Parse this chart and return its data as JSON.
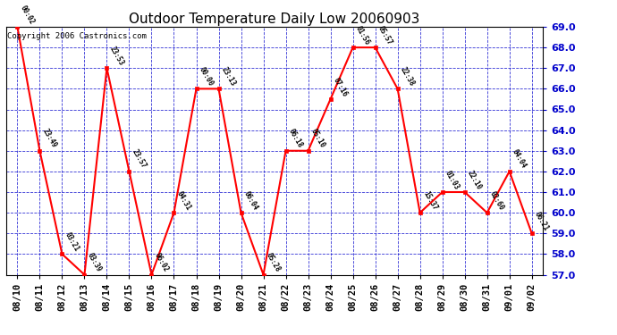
{
  "title": "Outdoor Temperature Daily Low 20060903",
  "copyright": "Copyright 2006 Castronics.com",
  "dates": [
    "08/10",
    "08/11",
    "08/12",
    "08/13",
    "08/14",
    "08/15",
    "08/16",
    "08/17",
    "08/18",
    "08/19",
    "08/20",
    "08/21",
    "08/22",
    "08/23",
    "08/24",
    "08/25",
    "08/26",
    "08/27",
    "08/28",
    "08/29",
    "08/30",
    "08/31",
    "09/01",
    "09/02"
  ],
  "values": [
    69.0,
    63.0,
    58.0,
    57.0,
    67.0,
    62.0,
    57.0,
    60.0,
    66.0,
    66.0,
    60.0,
    57.0,
    63.0,
    63.0,
    65.5,
    68.0,
    68.0,
    66.0,
    60.0,
    61.0,
    61.0,
    60.0,
    62.0,
    59.0
  ],
  "labels": [
    "00:02",
    "23:49",
    "03:21",
    "03:39",
    "23:53",
    "23:57",
    "06:02",
    "04:31",
    "00:00",
    "23:13",
    "06:04",
    "05:28",
    "06:18",
    "05:10",
    "07:16",
    "01:56",
    "05:57",
    "22:38",
    "15:37",
    "01:03",
    "22:10",
    "02:60",
    "04:04",
    "06:21"
  ],
  "ylim": [
    57.0,
    69.0
  ],
  "yticks": [
    57.0,
    58.0,
    59.0,
    60.0,
    61.0,
    62.0,
    63.0,
    64.0,
    65.0,
    66.0,
    67.0,
    68.0,
    69.0
  ],
  "line_color": "#ff0000",
  "marker_color": "#ff0000",
  "bg_color": "#ffffff",
  "plot_bg_color": "#ffffff",
  "grid_color": "#0000cc",
  "label_color": "#000000",
  "title_color": "#000000",
  "copyright_color": "#000000",
  "ytick_color": "#0000cc",
  "axis_color": "#000000",
  "marker_size": 3,
  "line_width": 1.5,
  "title_fontsize": 11,
  "label_fontsize": 5.5,
  "tick_fontsize": 7.5,
  "ytick_fontsize": 8,
  "copyright_fontsize": 6.5
}
